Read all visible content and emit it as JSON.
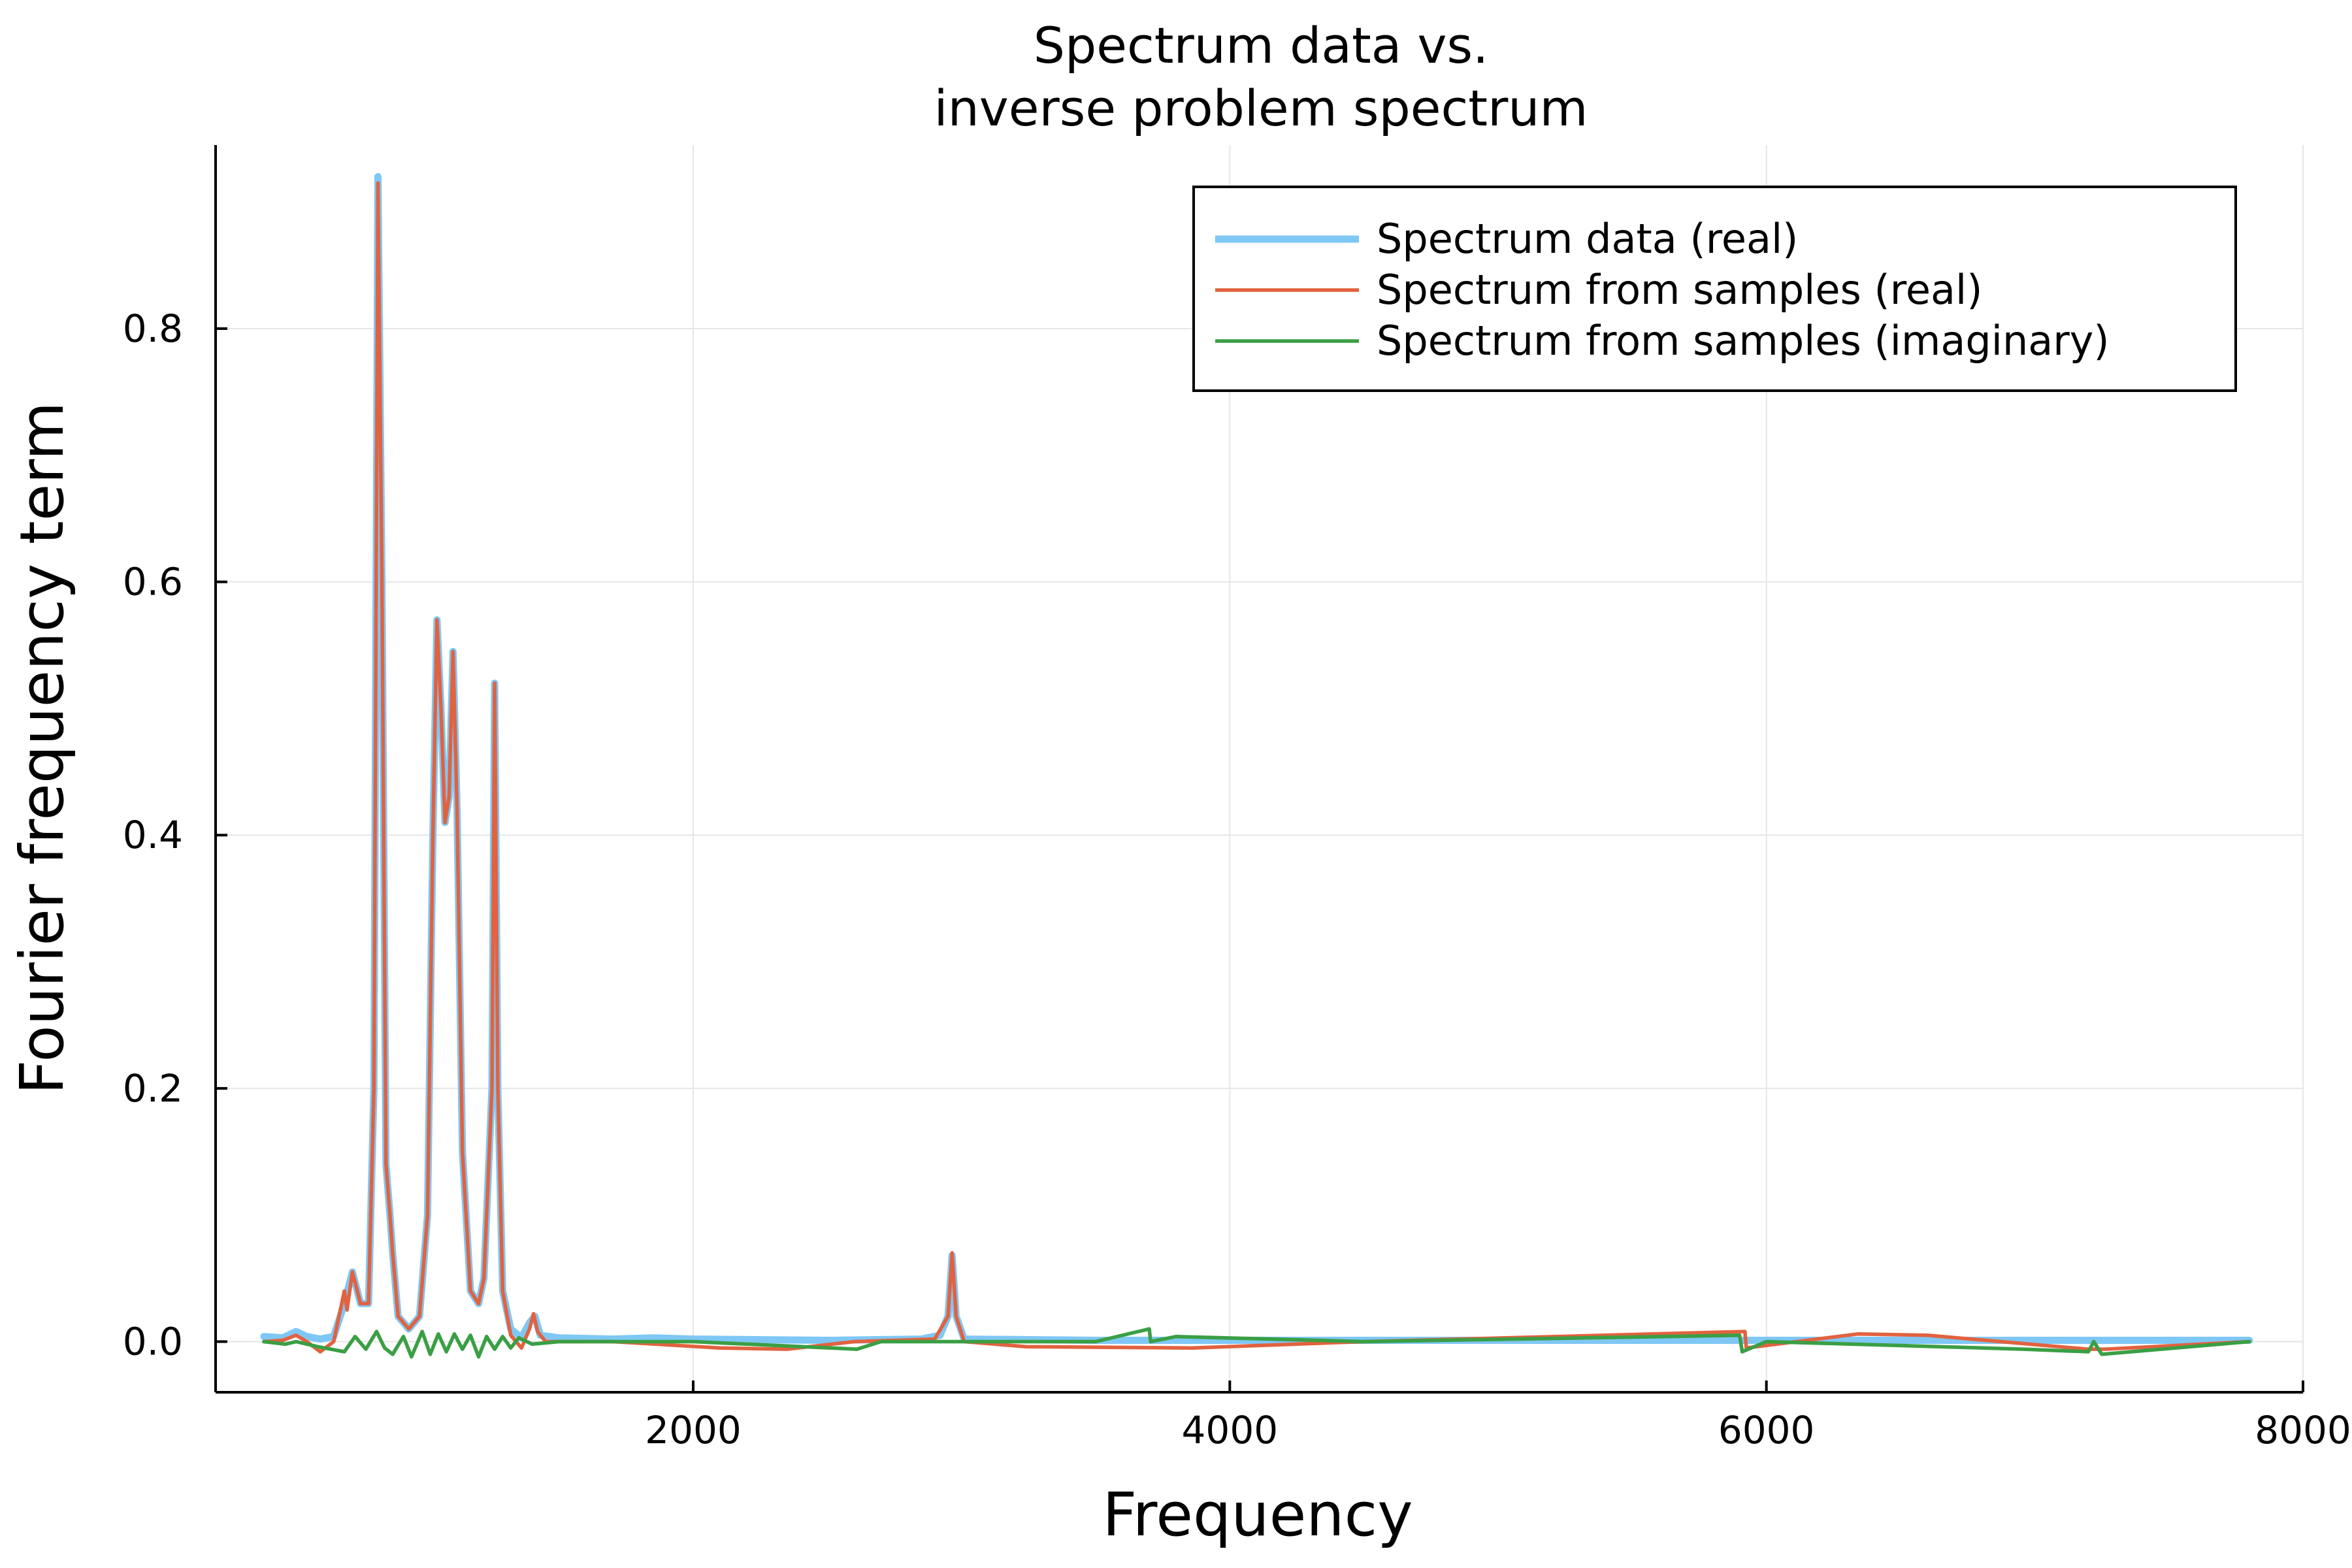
{
  "chart_data": {
    "type": "line",
    "title_line1": "Spectrum data vs.",
    "title_line2": "inverse problem spectrum",
    "xlabel": "Frequency",
    "ylabel": "Fourier frequency term",
    "xlim": [
      220,
      8000
    ],
    "ylim": [
      -0.04,
      0.945
    ],
    "xticks": [
      2000,
      4000,
      6000,
      8000
    ],
    "xtick_labels": [
      "2000",
      "4000",
      "6000",
      "8000"
    ],
    "yticks": [
      0.0,
      0.2,
      0.4,
      0.6,
      0.8
    ],
    "ytick_labels": [
      "0.0",
      "0.2",
      "0.4",
      "0.6",
      "0.8"
    ],
    "grid": true,
    "legend_position": "top-right",
    "series": [
      {
        "name": "Spectrum data (real)",
        "color": "#7fc7f5",
        "width": "thick",
        "points": [
          [
            400,
            0.004
          ],
          [
            470,
            0.003
          ],
          [
            520,
            0.008
          ],
          [
            560,
            0.004
          ],
          [
            610,
            0.002
          ],
          [
            660,
            0.004
          ],
          [
            700,
            0.03
          ],
          [
            730,
            0.055
          ],
          [
            760,
            0.03
          ],
          [
            790,
            0.03
          ],
          [
            810,
            0.2
          ],
          [
            825,
            0.92
          ],
          [
            840,
            0.6
          ],
          [
            855,
            0.14
          ],
          [
            870,
            0.1
          ],
          [
            880,
            0.07
          ],
          [
            900,
            0.02
          ],
          [
            940,
            0.01
          ],
          [
            980,
            0.02
          ],
          [
            1010,
            0.1
          ],
          [
            1030,
            0.4
          ],
          [
            1045,
            0.57
          ],
          [
            1060,
            0.5
          ],
          [
            1075,
            0.41
          ],
          [
            1090,
            0.43
          ],
          [
            1105,
            0.545
          ],
          [
            1120,
            0.42
          ],
          [
            1140,
            0.15
          ],
          [
            1170,
            0.04
          ],
          [
            1200,
            0.03
          ],
          [
            1220,
            0.05
          ],
          [
            1250,
            0.2
          ],
          [
            1260,
            0.52
          ],
          [
            1272,
            0.2
          ],
          [
            1290,
            0.04
          ],
          [
            1320,
            0.01
          ],
          [
            1360,
            0.003
          ],
          [
            1390,
            0.015
          ],
          [
            1410,
            0.02
          ],
          [
            1430,
            0.005
          ],
          [
            1500,
            0.003
          ],
          [
            1700,
            0.002
          ],
          [
            1850,
            0.003
          ],
          [
            2000,
            0.002
          ],
          [
            2500,
            0.001
          ],
          [
            2850,
            0.002
          ],
          [
            2920,
            0.005
          ],
          [
            2950,
            0.02
          ],
          [
            2965,
            0.068
          ],
          [
            2980,
            0.02
          ],
          [
            3010,
            0.002
          ],
          [
            3500,
            0.001
          ],
          [
            4500,
            0.001
          ],
          [
            6000,
            0.001
          ],
          [
            7800,
            0.001
          ]
        ]
      },
      {
        "name": "Spectrum from samples (real)",
        "color": "#e2623f",
        "width": "normal",
        "points": [
          [
            400,
            0.0
          ],
          [
            470,
            0.001
          ],
          [
            520,
            0.005
          ],
          [
            560,
            0.0
          ],
          [
            610,
            -0.008
          ],
          [
            660,
            0.0
          ],
          [
            700,
            0.04
          ],
          [
            710,
            0.025
          ],
          [
            730,
            0.055
          ],
          [
            760,
            0.03
          ],
          [
            790,
            0.03
          ],
          [
            810,
            0.2
          ],
          [
            825,
            0.915
          ],
          [
            840,
            0.6
          ],
          [
            855,
            0.14
          ],
          [
            870,
            0.1
          ],
          [
            880,
            0.07
          ],
          [
            900,
            0.02
          ],
          [
            940,
            0.01
          ],
          [
            980,
            0.02
          ],
          [
            1010,
            0.1
          ],
          [
            1030,
            0.4
          ],
          [
            1045,
            0.57
          ],
          [
            1060,
            0.5
          ],
          [
            1075,
            0.41
          ],
          [
            1090,
            0.43
          ],
          [
            1105,
            0.545
          ],
          [
            1120,
            0.42
          ],
          [
            1140,
            0.15
          ],
          [
            1170,
            0.04
          ],
          [
            1200,
            0.03
          ],
          [
            1220,
            0.05
          ],
          [
            1250,
            0.2
          ],
          [
            1260,
            0.52
          ],
          [
            1272,
            0.2
          ],
          [
            1290,
            0.04
          ],
          [
            1320,
            0.005
          ],
          [
            1360,
            -0.005
          ],
          [
            1390,
            0.01
          ],
          [
            1405,
            0.022
          ],
          [
            1420,
            0.008
          ],
          [
            1450,
            0.0
          ],
          [
            1700,
            0.0
          ],
          [
            2100,
            -0.005
          ],
          [
            2350,
            -0.006
          ],
          [
            2600,
            0.0
          ],
          [
            2900,
            0.002
          ],
          [
            2950,
            0.02
          ],
          [
            2965,
            0.07
          ],
          [
            2980,
            0.02
          ],
          [
            3010,
            0.0
          ],
          [
            3240,
            -0.004
          ],
          [
            3860,
            -0.005
          ],
          [
            4500,
            0.0
          ],
          [
            5920,
            0.008
          ],
          [
            5925,
            -0.005
          ],
          [
            6340,
            0.006
          ],
          [
            6600,
            0.005
          ],
          [
            7200,
            -0.006
          ],
          [
            7260,
            -0.006
          ],
          [
            7800,
            0.0
          ]
        ]
      },
      {
        "name": "Spectrum from samples (imaginary)",
        "color": "#3a9f44",
        "width": "normal",
        "points": [
          [
            400,
            0.0
          ],
          [
            480,
            -0.002
          ],
          [
            520,
            0.0
          ],
          [
            600,
            -0.004
          ],
          [
            700,
            -0.008
          ],
          [
            740,
            0.004
          ],
          [
            780,
            -0.006
          ],
          [
            820,
            0.008
          ],
          [
            850,
            -0.005
          ],
          [
            880,
            -0.01
          ],
          [
            920,
            0.004
          ],
          [
            950,
            -0.012
          ],
          [
            990,
            0.008
          ],
          [
            1020,
            -0.01
          ],
          [
            1050,
            0.006
          ],
          [
            1080,
            -0.008
          ],
          [
            1110,
            0.006
          ],
          [
            1140,
            -0.006
          ],
          [
            1170,
            0.005
          ],
          [
            1200,
            -0.012
          ],
          [
            1230,
            0.004
          ],
          [
            1260,
            -0.006
          ],
          [
            1290,
            0.004
          ],
          [
            1320,
            -0.005
          ],
          [
            1350,
            0.003
          ],
          [
            1400,
            -0.002
          ],
          [
            1500,
            0.0
          ],
          [
            1800,
            0.0
          ],
          [
            2000,
            0.0
          ],
          [
            2610,
            -0.006
          ],
          [
            2700,
            0.0
          ],
          [
            3000,
            0.0
          ],
          [
            3500,
            0.0
          ],
          [
            3700,
            0.01
          ],
          [
            3705,
            0.0
          ],
          [
            3800,
            0.004
          ],
          [
            4500,
            0.0
          ],
          [
            5900,
            0.005
          ],
          [
            5910,
            -0.008
          ],
          [
            6000,
            0.0
          ],
          [
            6960,
            -0.006
          ],
          [
            7200,
            -0.008
          ],
          [
            7220,
            0.0
          ],
          [
            7250,
            -0.01
          ],
          [
            7800,
            0.0
          ]
        ]
      }
    ]
  }
}
